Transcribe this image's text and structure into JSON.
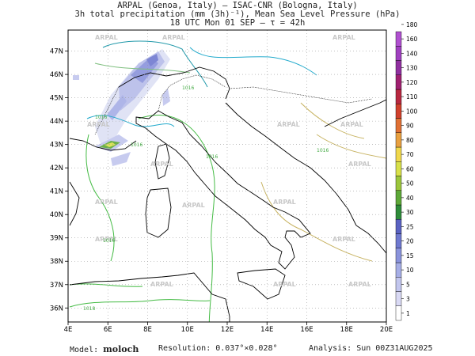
{
  "header": {
    "line1": "ARPAL (Genoa, Italy)  –  ISAC-CNR (Bologna, Italy)",
    "line2": "3h total precipitation (mm (3h)⁻¹), Mean Sea Level Pressure (hPa)",
    "line3": "18 UTC Mon 01 SEP  –  τ = 42h"
  },
  "map": {
    "lon_labels": [
      "4E",
      "6E",
      "8E",
      "10E",
      "12E",
      "14E",
      "16E",
      "18E",
      "20E"
    ],
    "lat_labels": [
      "36N",
      "37N",
      "38N",
      "39N",
      "40N",
      "41N",
      "42N",
      "43N",
      "44N",
      "45N",
      "46N",
      "47N"
    ],
    "watermark": "ARPAL",
    "isobar_labels": [
      "1016",
      "1016",
      "1016",
      "1016",
      "1018",
      "1016",
      "1016"
    ]
  },
  "colorbar": {
    "levels": [
      "1",
      "3",
      "5",
      "10",
      "15",
      "20",
      "25",
      "30",
      "40",
      "50",
      "60",
      "70",
      "80",
      "90",
      "100",
      "110",
      "120",
      "130",
      "140",
      "160",
      "180"
    ],
    "colors": [
      "#ffffff",
      "#d9d9f4",
      "#c2c6ee",
      "#a6aee6",
      "#8a93dc",
      "#6f79d0",
      "#5a62c2",
      "#2e8b3a",
      "#5ea838",
      "#9cc63c",
      "#d8e04a",
      "#f0d84c",
      "#e8a040",
      "#e07034",
      "#d0402c",
      "#b82840",
      "#a02070",
      "#9030a0",
      "#a040c0",
      "#b050d0"
    ]
  },
  "footer": {
    "model_label": "Model:",
    "model_value": "moloch",
    "resolution": "Resolution: 0.037°×0.028°",
    "analysis": "Analysis: Sun 00Z31AUG2025"
  }
}
